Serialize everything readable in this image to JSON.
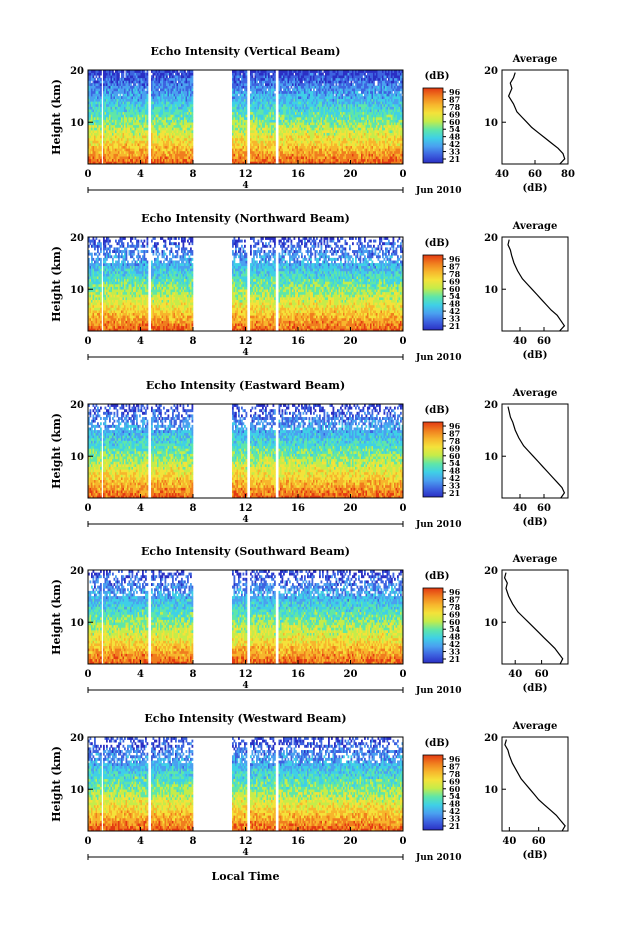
{
  "figure": {
    "xlabel": "Local Time",
    "date_label": "Jun 2010",
    "day_label": "4",
    "ylabel": "Height (km)",
    "colorbar_unit": "(dB)",
    "colorbar_ticks": [
      "96",
      "87",
      "78",
      "69",
      "60",
      "54",
      "48",
      "42",
      "33",
      "21"
    ],
    "average_title": "Average",
    "average_xlabel": "(dB)",
    "colormap": [
      "#2a2fc4",
      "#3d63e0",
      "#4aa0f0",
      "#3fd0e6",
      "#5fe6a8",
      "#c5ec4a",
      "#f4e23a",
      "#f7b52c",
      "#f07d1e",
      "#e33a12"
    ]
  },
  "chart_data": [
    {
      "type": "heatmap",
      "title": "Echo Intensity (Vertical Beam)",
      "x_ticks": [
        "0",
        "4",
        "8",
        "12",
        "16",
        "20",
        "0"
      ],
      "y_ticks": [
        "20",
        "10"
      ],
      "xlim": [
        0,
        24
      ],
      "ylim": [
        2,
        20
      ],
      "missing_data_intervals": [
        [
          8,
          11
        ],
        [
          12.1,
          12.4
        ]
      ],
      "average_profile": {
        "xlim": [
          40,
          80
        ],
        "x_ticks": [
          "40",
          "60",
          "80"
        ],
        "y_ticks": [
          "20",
          "10"
        ],
        "x": [
          48,
          47,
          45,
          46,
          44,
          47,
          49,
          52,
          55,
          58,
          62,
          66,
          70,
          74,
          77,
          78,
          75
        ],
        "y": [
          19.5,
          18.5,
          17.5,
          16.5,
          15,
          13.5,
          12,
          11,
          10,
          9,
          8,
          7,
          6,
          5,
          4,
          3,
          2
        ]
      }
    },
    {
      "type": "heatmap",
      "title": "Echo Intensity (Northward Beam)",
      "x_ticks": [
        "0",
        "4",
        "8",
        "12",
        "16",
        "20",
        "0"
      ],
      "y_ticks": [
        "20",
        "10"
      ],
      "xlim": [
        0,
        24
      ],
      "ylim": [
        2,
        20
      ],
      "missing_data_intervals": [
        [
          8,
          11
        ],
        [
          12.1,
          12.4
        ]
      ],
      "average_profile": {
        "xlim": [
          25,
          80
        ],
        "x_ticks": [
          "40",
          "60"
        ],
        "y_ticks": [
          "20",
          "10"
        ],
        "x": [
          31,
          30,
          32,
          33,
          35,
          38,
          42,
          46,
          50,
          54,
          58,
          62,
          66,
          71,
          74,
          77,
          73
        ],
        "y": [
          19.5,
          18.5,
          17.5,
          16.5,
          15,
          13.5,
          12,
          11,
          10,
          9,
          8,
          7,
          6,
          5,
          4,
          3,
          2
        ]
      }
    },
    {
      "type": "heatmap",
      "title": "Echo Intensity (Eastward Beam)",
      "x_ticks": [
        "0",
        "4",
        "8",
        "12",
        "16",
        "20",
        "0"
      ],
      "y_ticks": [
        "20",
        "10"
      ],
      "xlim": [
        0,
        24
      ],
      "ylim": [
        2,
        20
      ],
      "missing_data_intervals": [
        [
          8,
          11
        ],
        [
          12.1,
          12.4
        ]
      ],
      "average_profile": {
        "xlim": [
          25,
          80
        ],
        "x_ticks": [
          "40",
          "60"
        ],
        "y_ticks": [
          "20",
          "10"
        ],
        "x": [
          30,
          31,
          32,
          34,
          36,
          39,
          43,
          47,
          51,
          55,
          59,
          63,
          67,
          71,
          75,
          77,
          74
        ],
        "y": [
          19.5,
          18.5,
          17.5,
          16.5,
          15,
          13.5,
          12,
          11,
          10,
          9,
          8,
          7,
          6,
          5,
          4,
          3,
          2
        ]
      }
    },
    {
      "type": "heatmap",
      "title": "Echo Intensity (Southward Beam)",
      "x_ticks": [
        "0",
        "4",
        "8",
        "12",
        "16",
        "20",
        "0"
      ],
      "y_ticks": [
        "20",
        "10"
      ],
      "xlim": [
        0,
        24
      ],
      "ylim": [
        2,
        20
      ],
      "missing_data_intervals": [
        [
          8,
          11
        ],
        [
          12.1,
          12.4
        ]
      ],
      "average_profile": {
        "xlim": [
          30,
          80
        ],
        "x_ticks": [
          "40",
          "60"
        ],
        "y_ticks": [
          "20",
          "10"
        ],
        "x": [
          33,
          32,
          34,
          33,
          35,
          38,
          42,
          46,
          50,
          54,
          58,
          62,
          66,
          70,
          73,
          76,
          74
        ],
        "y": [
          19.5,
          18.5,
          17.5,
          16.5,
          15,
          13.5,
          12,
          11,
          10,
          9,
          8,
          7,
          6,
          5,
          4,
          3,
          2
        ]
      }
    },
    {
      "type": "heatmap",
      "title": "Echo Intensity (Westward Beam)",
      "x_ticks": [
        "0",
        "4",
        "8",
        "12",
        "16",
        "20",
        "0"
      ],
      "y_ticks": [
        "20",
        "10"
      ],
      "xlim": [
        0,
        24
      ],
      "ylim": [
        2,
        20
      ],
      "missing_data_intervals": [
        [
          8,
          11
        ],
        [
          12.1,
          12.4
        ]
      ],
      "average_profile": {
        "xlim": [
          35,
          80
        ],
        "x_ticks": [
          "40",
          "60"
        ],
        "y_ticks": [
          "20",
          "10"
        ],
        "x": [
          38,
          37,
          39,
          40,
          42,
          45,
          48,
          51,
          54,
          57,
          60,
          64,
          68,
          72,
          75,
          78,
          76
        ],
        "y": [
          19.5,
          18.5,
          17.5,
          16.5,
          15,
          13.5,
          12,
          11,
          10,
          9,
          8,
          7,
          6,
          5,
          4,
          3,
          2
        ]
      }
    }
  ]
}
